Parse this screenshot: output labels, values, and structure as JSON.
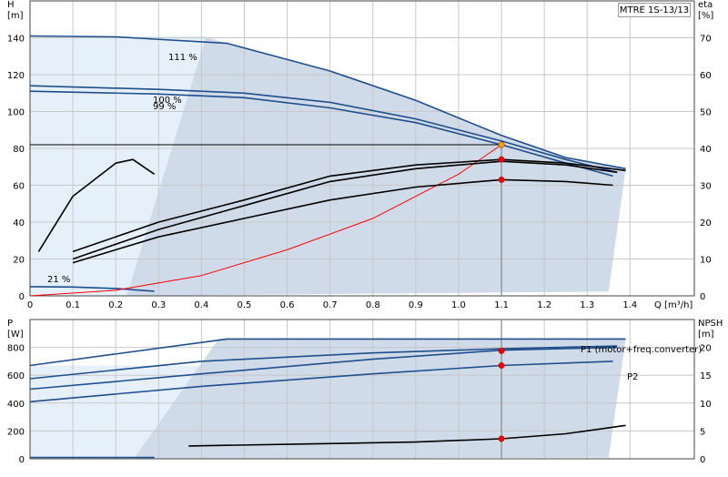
{
  "chart_data": [
    {
      "type": "line",
      "title": "",
      "model_label": "MTRE 1S-13/13",
      "xlabel": "Q [m³/h]",
      "ylabel_left": "H",
      "ylabel_left_unit": "[m]",
      "ylabel_right": "eta",
      "ylabel_right_unit": "[%]",
      "xlim": [
        0,
        1.55
      ],
      "ylim_left": [
        0,
        160
      ],
      "ylim_right": [
        0,
        80
      ],
      "x_ticks": [
        0,
        0.1,
        0.2,
        0.3,
        0.4,
        0.5,
        0.6,
        0.7,
        0.8,
        0.9,
        1.0,
        1.1,
        1.2,
        1.3,
        1.4
      ],
      "x_tick_labels": [
        "0",
        "0.1",
        "0.2",
        "0.3",
        "0.4",
        "0.5",
        "0.6",
        "0.7",
        "0.8",
        "0.9",
        "1.0",
        "1.1",
        "1.2",
        "1.3",
        "1.4"
      ],
      "y_left_ticks": [
        0,
        20,
        40,
        60,
        80,
        100,
        120,
        140
      ],
      "y_right_ticks": [
        0,
        10,
        20,
        30,
        40,
        50,
        60,
        70
      ],
      "grid": true,
      "curve_labels": [
        "111 %",
        "100 %",
        "99 %",
        "21 %"
      ],
      "series": [
        {
          "name": "111 %",
          "axis": "left",
          "color": "#1f4e8c",
          "x": [
            0,
            0.2,
            0.46,
            0.7,
            0.9,
            1.1,
            1.25,
            1.39
          ],
          "y": [
            141,
            140.5,
            137,
            122,
            106,
            87,
            75,
            69
          ]
        },
        {
          "name": "100 %",
          "axis": "left",
          "color": "#1f4e8c",
          "x": [
            0,
            0.3,
            0.5,
            0.7,
            0.9,
            1.1,
            1.25,
            1.37
          ],
          "y": [
            114,
            112,
            110,
            105,
            96,
            84,
            74,
            67
          ]
        },
        {
          "name": "99 %",
          "axis": "left",
          "color": "#1f4e8c",
          "x": [
            0,
            0.3,
            0.5,
            0.7,
            0.9,
            1.1,
            1.25,
            1.36
          ],
          "y": [
            111,
            109.5,
            107.5,
            102,
            94,
            82,
            72,
            65
          ]
        },
        {
          "name": "21 %",
          "axis": "left",
          "color": "#1f4e8c",
          "x": [
            0,
            0.1,
            0.2,
            0.29
          ],
          "y": [
            5,
            4.8,
            4,
            2.5
          ]
        },
        {
          "name": "system",
          "axis": "left",
          "color": "#ff0000",
          "x": [
            0,
            0.2,
            0.4,
            0.6,
            0.8,
            1.0,
            1.1
          ],
          "y": [
            0,
            3,
            11,
            25,
            42,
            66,
            82
          ]
        },
        {
          "name": "eta-111",
          "axis": "right",
          "color": "#000000",
          "x": [
            0.1,
            0.3,
            0.5,
            0.7,
            0.9,
            1.1,
            1.25,
            1.39
          ],
          "y": [
            12,
            20,
            26,
            32.5,
            35.5,
            37,
            36,
            34
          ]
        },
        {
          "name": "eta-100",
          "axis": "right",
          "color": "#000000",
          "x": [
            0.1,
            0.3,
            0.5,
            0.7,
            0.9,
            1.1,
            1.25,
            1.37
          ],
          "y": [
            10,
            18,
            24.5,
            31,
            34.5,
            36.5,
            35.5,
            33.5
          ]
        },
        {
          "name": "eta-99",
          "axis": "right",
          "color": "#000000",
          "x": [
            0.1,
            0.3,
            0.5,
            0.7,
            0.9,
            1.1,
            1.25,
            1.36
          ],
          "y": [
            9,
            16,
            21,
            26,
            29.5,
            31.5,
            31,
            30
          ]
        },
        {
          "name": "eta-21",
          "axis": "right",
          "color": "#000000",
          "x": [
            0.02,
            0.1,
            0.2,
            0.24,
            0.29
          ],
          "y": [
            12,
            27,
            36,
            37,
            33
          ]
        }
      ],
      "operating_points": [
        {
          "x": 1.1,
          "y": 82,
          "axis": "left",
          "color": "#f5a800"
        },
        {
          "x": 1.1,
          "y": 37,
          "axis": "right",
          "color": "#ee0000"
        },
        {
          "x": 1.1,
          "y": 31.5,
          "axis": "right",
          "color": "#ee0000"
        }
      ],
      "duty_line": {
        "y": 82
      }
    },
    {
      "type": "line",
      "title": "",
      "xlabel": "",
      "ylabel_left": "P",
      "ylabel_left_unit": "[W]",
      "ylabel_right": "NPSH",
      "ylabel_right_unit": "[m]",
      "xlim": [
        0,
        1.55
      ],
      "ylim_left": [
        0,
        1000
      ],
      "ylim_right": [
        0,
        25
      ],
      "y_left_ticks": [
        0,
        200,
        400,
        600,
        800
      ],
      "y_right_ticks": [
        0,
        5,
        10,
        15,
        20
      ],
      "grid": true,
      "series_labels": [
        "P1 (motor+freq.converter)",
        "P2"
      ],
      "series": [
        {
          "name": "P1 (motor+freq.converter)",
          "axis": "left",
          "color": "#1f4e8c",
          "x": [
            0,
            0.46,
            0.8,
            1.1,
            1.39
          ],
          "y": [
            670,
            860,
            860,
            860,
            860
          ]
        },
        {
          "name": "P1-100",
          "axis": "left",
          "color": "#1f4e8c",
          "x": [
            0,
            0.4,
            0.8,
            1.1,
            1.37
          ],
          "y": [
            575,
            700,
            760,
            790,
            810
          ]
        },
        {
          "name": "P1-99",
          "axis": "left",
          "color": "#1f4e8c",
          "x": [
            0,
            0.4,
            0.8,
            1.1,
            1.37
          ],
          "y": [
            500,
            610,
            715,
            780,
            800
          ]
        },
        {
          "name": "P2",
          "axis": "left",
          "color": "#1f4e8c",
          "x": [
            0,
            0.4,
            0.8,
            1.1,
            1.36
          ],
          "y": [
            410,
            520,
            610,
            670,
            700
          ]
        },
        {
          "name": "P-21",
          "axis": "left",
          "color": "#1f4e8c",
          "x": [
            0,
            0.1,
            0.29
          ],
          "y": [
            10,
            10,
            10
          ]
        },
        {
          "name": "NPSH",
          "axis": "right",
          "color": "#000000",
          "x": [
            0.37,
            0.6,
            0.9,
            1.1,
            1.25,
            1.39
          ],
          "y": [
            2.3,
            2.6,
            3.0,
            3.6,
            4.5,
            6
          ]
        }
      ],
      "operating_points": [
        {
          "x": 1.1,
          "y": 775,
          "axis": "left",
          "color": "#ee0000"
        },
        {
          "x": 1.1,
          "y": 670,
          "axis": "left",
          "color": "#ee0000"
        },
        {
          "x": 1.1,
          "y": 3.6,
          "axis": "right",
          "color": "#ee0000"
        }
      ]
    }
  ]
}
